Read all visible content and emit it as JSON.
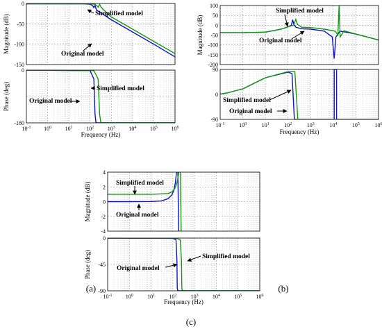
{
  "figure": {
    "captions": [
      "(a)",
      "(b)",
      "(c)"
    ]
  },
  "colors": {
    "original": "#1010c8",
    "simplified": "#119a11",
    "grid": "#b8b8b8"
  },
  "chart_data": [
    {
      "id": "a",
      "type": "line",
      "title": "",
      "xlabel": "Frequency (Hz)",
      "xscale": "log",
      "xlim": [
        0.1,
        1000000
      ],
      "xticks": [
        "10-1",
        "100",
        "101",
        "102",
        "103",
        "104",
        "105",
        "106"
      ],
      "legend": "annotations with arrows",
      "grid": true,
      "panels": [
        {
          "key": "mag",
          "ylabel": "Magnitude (dB)",
          "ylim": [
            -150,
            0
          ],
          "yticks": [
            "0",
            "-50",
            "-100",
            "-150"
          ],
          "yticklabels_drawn": [
            "0",
            "-50",
            "-100",
            "-150"
          ],
          "series": [
            {
              "name": "Original model",
              "role": "original",
              "x": [
                0.1,
                1,
                10,
                50,
                100,
                130,
                150,
                170,
                200,
                300,
                1000,
                10000,
                100000,
                1000000
              ],
              "y": [
                -1,
                -1,
                -1,
                -1,
                -2,
                -5,
                -10,
                -5,
                -16,
                -22,
                -40,
                -70,
                -100,
                -131
              ]
            },
            {
              "name": "Simplified model",
              "role": "simplified",
              "x": [
                0.1,
                1,
                10,
                100,
                170,
                200,
                240,
                280,
                320,
                400,
                1000,
                10000,
                100000,
                1000000
              ],
              "y": [
                -1,
                -1,
                -1,
                -1,
                -2,
                -5,
                -9,
                -2,
                -8,
                -14,
                -33,
                -63,
                -93,
                -123
              ]
            }
          ]
        },
        {
          "key": "phase",
          "ylabel": "Phase (deg)",
          "ylim": [
            -180,
            0
          ],
          "yticks": [
            "0",
            "-90",
            "-180"
          ],
          "yticklabels_drawn": [
            "0",
            "",
            "-180"
          ],
          "series": [
            {
              "name": "Original model",
              "role": "original",
              "x": [
                0.1,
                100,
                150,
                170,
                190,
                1000000
              ],
              "y": [
                0,
                -2,
                -30,
                -150,
                -180,
                -180
              ]
            },
            {
              "name": "Simplified model",
              "role": "simplified",
              "x": [
                0.1,
                150,
                240,
                280,
                320,
                1000000
              ],
              "y": [
                0,
                -2,
                -30,
                -150,
                -180,
                -180
              ]
            }
          ]
        }
      ],
      "annotations": [
        {
          "text": "Simplified model",
          "panel": "mag"
        },
        {
          "text": "Original model",
          "panel": "mag"
        },
        {
          "text": "Simplified model",
          "panel": "phase"
        },
        {
          "text": "Original model",
          "panel": "phase"
        }
      ]
    },
    {
      "id": "b",
      "type": "line",
      "title": "",
      "xlabel": "Frequency (Hz)",
      "xscale": "log",
      "xlim": [
        0.1,
        1000000
      ],
      "xticks": [
        "10-1",
        "100",
        "101",
        "102",
        "103",
        "104",
        "105",
        "106"
      ],
      "legend": "annotations with arrows",
      "grid": true,
      "panels": [
        {
          "key": "mag",
          "ylabel": "Magnitude (dB)",
          "ylim": [
            -200,
            100
          ],
          "yticks": [
            "100",
            "50",
            "0",
            "-50",
            "-100",
            "-150",
            "-200"
          ],
          "yticklabels_drawn": [
            "100",
            "50",
            "0",
            "-50",
            "-100",
            "-150",
            "-200"
          ],
          "series": [
            {
              "name": "Original model",
              "role": "original",
              "x": [
                0.1,
                1,
                10,
                50,
                100,
                140,
                160,
                180,
                220,
                400,
                1000,
                4000,
                9000,
                11000,
                13000,
                20000,
                100000,
                1000000
              ],
              "y": [
                -38,
                -38,
                -35,
                -20,
                -8,
                0,
                28,
                5,
                -10,
                -18,
                -20,
                -30,
                -60,
                -170,
                -60,
                -30,
                -45,
                -75
              ]
            },
            {
              "name": "Simplified model",
              "role": "simplified",
              "x": [
                0.1,
                1,
                10,
                50,
                100,
                180,
                220,
                260,
                400,
                1000,
                4000,
                12000,
                16000,
                18000,
                20000,
                30000,
                100000,
                1000000
              ],
              "y": [
                -38,
                -38,
                -35,
                -20,
                -8,
                0,
                30,
                5,
                -10,
                -12,
                -20,
                -30,
                -50,
                100,
                -60,
                -28,
                -45,
                -75
              ]
            }
          ]
        },
        {
          "key": "phase",
          "ylabel": "",
          "ylim": [
            -90,
            90
          ],
          "yticks": [
            "90",
            "0",
            "-90"
          ],
          "yticklabels_drawn": [
            "90",
            "0",
            "-90"
          ],
          "series": [
            {
              "name": "Original model",
              "role": "original",
              "x": [
                0.1,
                0.2,
                1,
                10,
                100,
                150,
                170,
                190,
                11000,
                11001,
                14000,
                14001,
                1000000
              ],
              "y": [
                1,
                5,
                20,
                60,
                80,
                75,
                -10,
                -90,
                -90,
                90,
                90,
                -90,
                -90
              ]
            },
            {
              "name": "Simplified model",
              "role": "simplified",
              "x": [
                0.1,
                0.2,
                1,
                10,
                100,
                200,
                240,
                270,
                1000000
              ],
              "y": [
                1,
                5,
                20,
                60,
                82,
                82,
                -20,
                -90,
                -90
              ]
            }
          ]
        }
      ],
      "annotations": [
        {
          "text": "Simplified model",
          "panel": "mag"
        },
        {
          "text": "Original model",
          "panel": "mag"
        },
        {
          "text": "Simplified model",
          "panel": "phase"
        },
        {
          "text": "Original model",
          "panel": "phase"
        }
      ]
    },
    {
      "id": "c",
      "type": "line",
      "title": "",
      "xlabel": "Frequency (Hz)",
      "xscale": "log",
      "xlim": [
        0.1,
        1000000
      ],
      "xticks": [
        "10-1",
        "100",
        "101",
        "102",
        "103",
        "104",
        "105",
        "106"
      ],
      "legend": "annotations with arrows",
      "grid": true,
      "panels": [
        {
          "key": "mag",
          "ylabel": "Magnitude (dB)",
          "ylim": [
            -4,
            4
          ],
          "yticks": [
            "4",
            "2",
            "0",
            "-2",
            "-4"
          ],
          "yticklabels_drawn": [
            "4",
            "2",
            "0",
            "-2",
            "-4"
          ],
          "series": [
            {
              "name": "Original model",
              "role": "original",
              "x": [
                0.1,
                1,
                10,
                30,
                60,
                90,
                110,
                130,
                150,
                160,
                170,
                185,
                200,
                230
              ],
              "y": [
                0,
                0,
                0.02,
                0.1,
                0.4,
                0.9,
                1.5,
                2.5,
                4.2,
                6,
                4,
                -4,
                -4.3,
                -4.5
              ]
            },
            {
              "name": "Simplified model",
              "role": "simplified",
              "x": [
                0.1,
                1,
                10,
                30,
                60,
                90,
                120,
                150,
                180,
                200,
                220,
                240,
                270,
                300
              ],
              "y": [
                1,
                1,
                1,
                1.05,
                1.1,
                1.3,
                1.7,
                2.4,
                3.5,
                5,
                6,
                -4,
                -4.3,
                -4.5
              ]
            }
          ]
        },
        {
          "key": "phase",
          "ylabel": "Phase (deg)",
          "ylim": [
            -90,
            0
          ],
          "yticks": [
            "0",
            "-45",
            "-90"
          ],
          "yticklabels_drawn": [
            "0",
            "-45",
            "-90"
          ],
          "series": [
            {
              "name": "Original model",
              "role": "original",
              "x": [
                0.1,
                100,
                140,
                155,
                160,
                170,
                1000000
              ],
              "y": [
                0,
                -0.5,
                -3,
                -40,
                -85,
                -90,
                -90
              ]
            },
            {
              "name": "Simplified model",
              "role": "simplified",
              "x": [
                0.1,
                150,
                220,
                250,
                260,
                275,
                1000000
              ],
              "y": [
                0,
                -0.5,
                -3,
                -40,
                -85,
                -90,
                -90
              ]
            }
          ]
        }
      ],
      "annotations": [
        {
          "text": "Simplified model",
          "panel": "mag"
        },
        {
          "text": "Original model",
          "panel": "mag"
        },
        {
          "text": "Simplified model",
          "panel": "phase"
        },
        {
          "text": "Original model",
          "panel": "phase"
        }
      ]
    }
  ]
}
